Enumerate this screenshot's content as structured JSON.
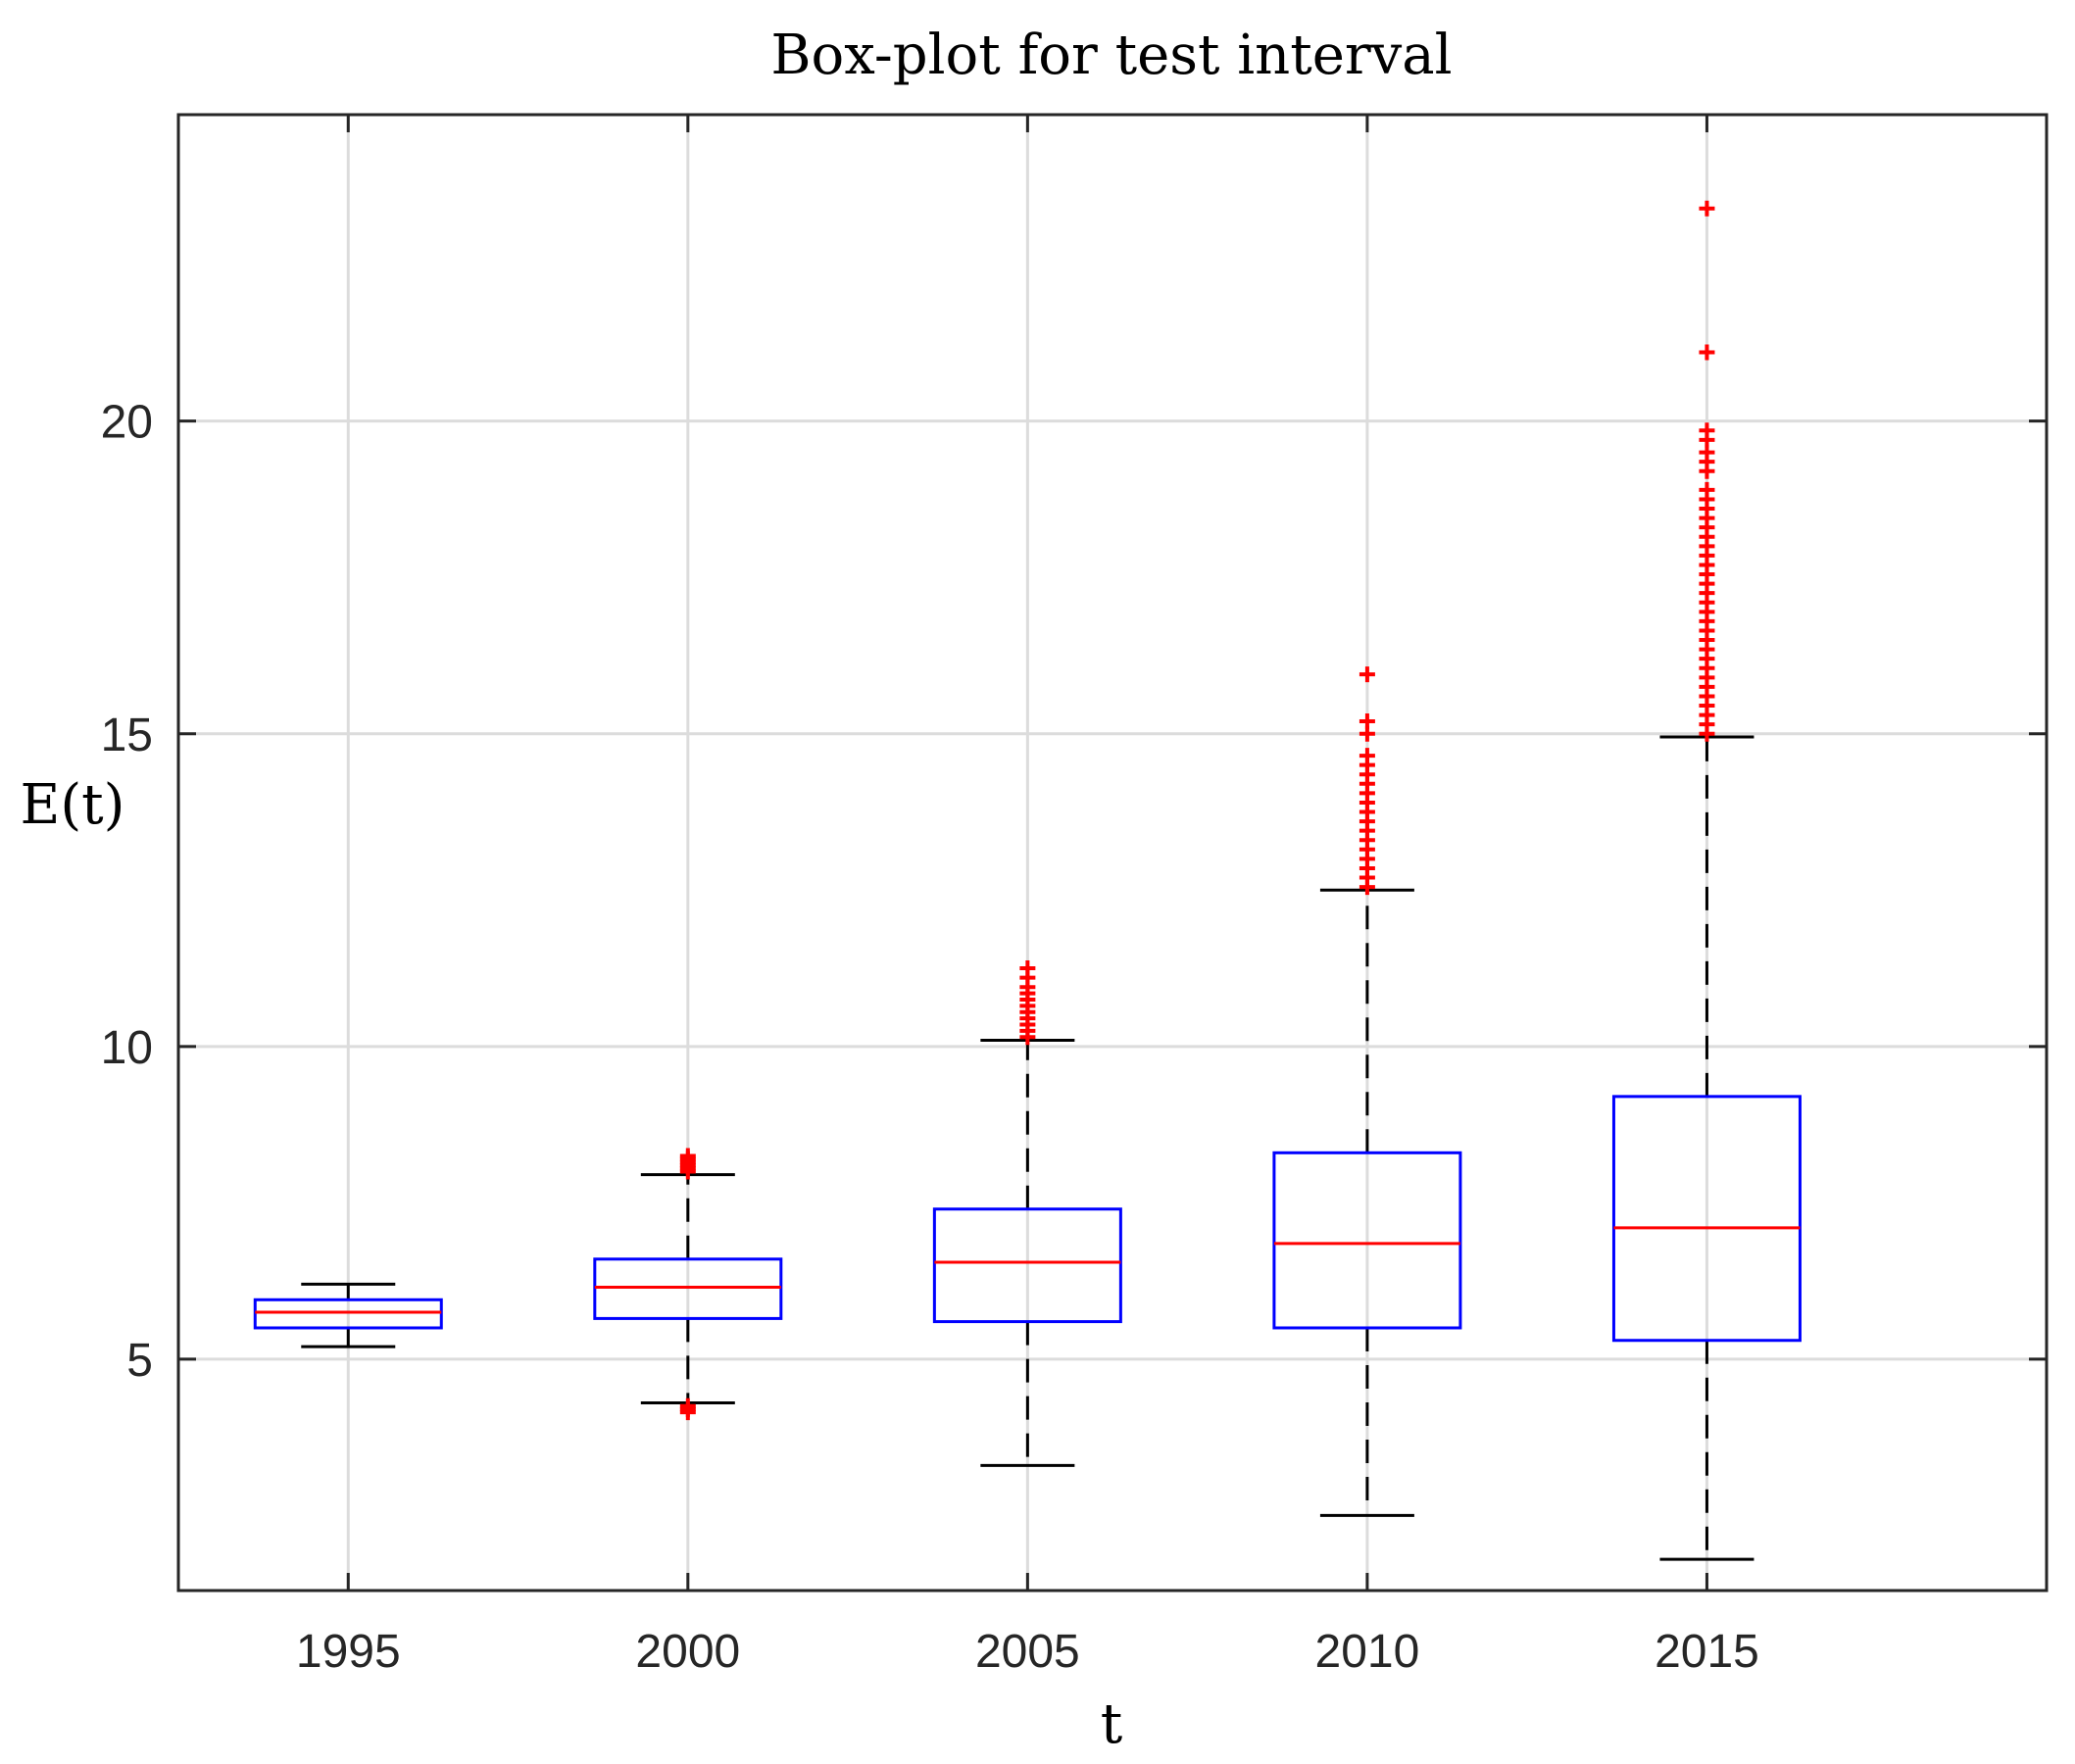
{
  "chart_data": {
    "type": "boxplot",
    "title": "Box-plot for test interval",
    "xlabel": "t",
    "ylabel": "E(t)",
    "categories": [
      "1995",
      "2000",
      "2005",
      "2010",
      "2015"
    ],
    "ylim": [
      1.3,
      24.9
    ],
    "yticks": [
      5,
      10,
      15,
      20
    ],
    "grid": true,
    "colors": {
      "box": "#0000ff",
      "median": "#ff0000",
      "whisker": "#000000",
      "outlier": "#ff0000",
      "grid": "#dcdcdc",
      "axes": "#262626"
    },
    "boxes": [
      {
        "category": "1995",
        "whisker_low": 5.2,
        "q1": 5.5,
        "median": 5.75,
        "q3": 5.95,
        "whisker_high": 6.2,
        "outliers": []
      },
      {
        "category": "2000",
        "whisker_low": 4.3,
        "q1": 5.65,
        "median": 6.15,
        "q3": 6.6,
        "whisker_high": 7.95,
        "outliers": [
          4.15,
          4.2,
          4.25,
          8.0,
          8.05,
          8.1,
          8.15,
          8.2,
          8.25
        ]
      },
      {
        "category": "2005",
        "whisker_low": 3.3,
        "q1": 5.6,
        "median": 6.55,
        "q3": 7.4,
        "whisker_high": 10.1,
        "outliers": [
          10.15,
          10.25,
          10.35,
          10.45,
          10.55,
          10.65,
          10.75,
          10.85,
          10.95,
          11.1,
          11.25
        ]
      },
      {
        "category": "2010",
        "whisker_low": 2.5,
        "q1": 5.5,
        "median": 6.85,
        "q3": 8.3,
        "whisker_high": 12.5,
        "outliers": [
          12.55,
          12.7,
          12.85,
          13.0,
          13.15,
          13.3,
          13.45,
          13.6,
          13.75,
          13.9,
          14.05,
          14.2,
          14.35,
          14.5,
          14.65,
          15.0,
          15.2,
          15.95
        ]
      },
      {
        "category": "2015",
        "whisker_low": 1.8,
        "q1": 5.3,
        "median": 7.1,
        "q3": 9.2,
        "whisker_high": 14.95,
        "outliers": [
          15.0,
          15.15,
          15.3,
          15.45,
          15.6,
          15.75,
          15.9,
          16.05,
          16.2,
          16.35,
          16.5,
          16.65,
          16.8,
          16.95,
          17.1,
          17.25,
          17.4,
          17.55,
          17.7,
          17.85,
          18.0,
          18.15,
          18.3,
          18.45,
          18.6,
          18.75,
          18.9,
          19.2,
          19.35,
          19.5,
          19.7,
          19.85,
          21.1,
          23.4
        ]
      }
    ]
  }
}
